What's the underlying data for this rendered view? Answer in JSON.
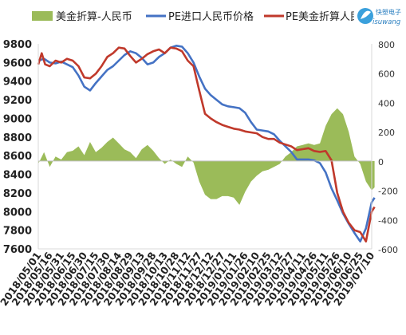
{
  "chart_data": {
    "type": "line",
    "legend": {
      "placement": "top",
      "entries": [
        "美金折算-人民币",
        "PE进口人民币价格",
        "PE美金折算人民币"
      ]
    },
    "colors": {
      "area": "#9bbb59",
      "blue": "#4472c4",
      "red": "#c0392b",
      "axis": "#999999"
    },
    "logo": {
      "text_cn": "快塑电子",
      "text_en": "isuwang"
    },
    "left_axis": {
      "min": 7600,
      "max": 9800,
      "ticks": [
        "9800",
        "9600",
        "9400",
        "9200",
        "9000",
        "8800",
        "8600",
        "8400",
        "8200",
        "8000",
        "7800",
        "7600"
      ]
    },
    "right_axis": {
      "min": -600,
      "max": 800,
      "ticks": [
        "800",
        "600",
        "400",
        "200",
        "0",
        "-200",
        "-400",
        "-600"
      ]
    },
    "x_ticks": [
      "2018/05/01",
      "2018/05/16",
      "2018/05/31",
      "2018/06/15",
      "2018/06/30",
      "2018/07/15",
      "2018/07/30",
      "2018/08/14",
      "2018/08/29",
      "2018/09/13",
      "2018/09/28",
      "2018/10/13",
      "2018/10/28",
      "2018/11/12",
      "2018/11/27",
      "2018/12/12",
      "2018/12/27",
      "2019/01/11",
      "2019/01/26",
      "2019/02/10",
      "2019/02/25",
      "2019/03/12",
      "2019/03/27",
      "2019/04/11",
      "2019/04/26",
      "2019/05/11",
      "2019/05/26",
      "2019/06/10",
      "2019/06/25",
      "2019/07/10"
    ],
    "series": [
      {
        "name": "PE进口人民币价格",
        "axis": "left",
        "points": [
          [
            0,
            9620
          ],
          [
            0.5,
            9640
          ],
          [
            1,
            9600
          ],
          [
            1.5,
            9590
          ],
          [
            2,
            9610
          ],
          [
            2.5,
            9580
          ],
          [
            3,
            9550
          ],
          [
            3.5,
            9460
          ],
          [
            4,
            9340
          ],
          [
            4.5,
            9300
          ],
          [
            5,
            9380
          ],
          [
            5.5,
            9450
          ],
          [
            6,
            9520
          ],
          [
            6.5,
            9560
          ],
          [
            7,
            9620
          ],
          [
            7.5,
            9680
          ],
          [
            8,
            9720
          ],
          [
            8.5,
            9700
          ],
          [
            9,
            9650
          ],
          [
            9.5,
            9580
          ],
          [
            10,
            9600
          ],
          [
            10.5,
            9660
          ],
          [
            11,
            9700
          ],
          [
            11.5,
            9760
          ],
          [
            12,
            9780
          ],
          [
            12.5,
            9770
          ],
          [
            13,
            9700
          ],
          [
            13.5,
            9600
          ],
          [
            14,
            9450
          ],
          [
            14.5,
            9320
          ],
          [
            15,
            9250
          ],
          [
            15.5,
            9200
          ],
          [
            16,
            9150
          ],
          [
            16.5,
            9130
          ],
          [
            17,
            9120
          ],
          [
            17.5,
            9110
          ],
          [
            18,
            9060
          ],
          [
            18.5,
            8960
          ],
          [
            19,
            8880
          ],
          [
            19.5,
            8870
          ],
          [
            20,
            8860
          ],
          [
            20.5,
            8830
          ],
          [
            21,
            8760
          ],
          [
            21.5,
            8700
          ],
          [
            22,
            8640
          ],
          [
            22.5,
            8560
          ],
          [
            23,
            8560
          ],
          [
            23.5,
            8560
          ],
          [
            24,
            8550
          ],
          [
            24.5,
            8520
          ],
          [
            25,
            8420
          ],
          [
            25.5,
            8250
          ],
          [
            26,
            8120
          ],
          [
            26.5,
            7980
          ],
          [
            27,
            7870
          ],
          [
            27.5,
            7770
          ],
          [
            28,
            7680
          ],
          [
            28.5,
            7820
          ],
          [
            29,
            8100
          ],
          [
            29.25,
            8150
          ]
        ]
      },
      {
        "name": "PE美金折算人民币",
        "axis": "left",
        "points": [
          [
            0,
            9580
          ],
          [
            0.3,
            9700
          ],
          [
            0.6,
            9580
          ],
          [
            1,
            9560
          ],
          [
            1.5,
            9620
          ],
          [
            2,
            9600
          ],
          [
            2.5,
            9640
          ],
          [
            3,
            9620
          ],
          [
            3.5,
            9560
          ],
          [
            4,
            9440
          ],
          [
            4.5,
            9430
          ],
          [
            5,
            9480
          ],
          [
            5.5,
            9560
          ],
          [
            6,
            9660
          ],
          [
            6.5,
            9700
          ],
          [
            7,
            9760
          ],
          [
            7.5,
            9750
          ],
          [
            8,
            9670
          ],
          [
            8.5,
            9600
          ],
          [
            9,
            9640
          ],
          [
            9.5,
            9690
          ],
          [
            10,
            9720
          ],
          [
            10.5,
            9740
          ],
          [
            11,
            9700
          ],
          [
            11.5,
            9760
          ],
          [
            12,
            9750
          ],
          [
            12.5,
            9720
          ],
          [
            13,
            9620
          ],
          [
            13.5,
            9560
          ],
          [
            14,
            9300
          ],
          [
            14.5,
            9050
          ],
          [
            15,
            9000
          ],
          [
            15.5,
            8960
          ],
          [
            16,
            8930
          ],
          [
            16.5,
            8910
          ],
          [
            17,
            8890
          ],
          [
            17.5,
            8880
          ],
          [
            18,
            8860
          ],
          [
            18.5,
            8850
          ],
          [
            19,
            8840
          ],
          [
            19.5,
            8800
          ],
          [
            20,
            8780
          ],
          [
            20.5,
            8780
          ],
          [
            21,
            8740
          ],
          [
            21.5,
            8720
          ],
          [
            22,
            8700
          ],
          [
            22.5,
            8660
          ],
          [
            23,
            8670
          ],
          [
            23.5,
            8680
          ],
          [
            24,
            8650
          ],
          [
            24.5,
            8640
          ],
          [
            25,
            8650
          ],
          [
            25.5,
            8550
          ],
          [
            26,
            8200
          ],
          [
            26.5,
            8000
          ],
          [
            27,
            7880
          ],
          [
            27.5,
            7800
          ],
          [
            28,
            7780
          ],
          [
            28.5,
            7680
          ],
          [
            29,
            8000
          ],
          [
            29.25,
            8050
          ]
        ]
      },
      {
        "name": "美金折算-人民币",
        "axis": "right",
        "type": "area",
        "points": [
          [
            0,
            -20
          ],
          [
            0.5,
            60
          ],
          [
            1,
            -40
          ],
          [
            1.5,
            30
          ],
          [
            2,
            10
          ],
          [
            2.5,
            60
          ],
          [
            3,
            70
          ],
          [
            3.5,
            100
          ],
          [
            4,
            40
          ],
          [
            4.5,
            130
          ],
          [
            5,
            60
          ],
          [
            5.5,
            90
          ],
          [
            6,
            130
          ],
          [
            6.5,
            160
          ],
          [
            7,
            120
          ],
          [
            7.5,
            80
          ],
          [
            8,
            60
          ],
          [
            8.5,
            20
          ],
          [
            9,
            80
          ],
          [
            9.5,
            110
          ],
          [
            10,
            70
          ],
          [
            10.5,
            20
          ],
          [
            11,
            -20
          ],
          [
            11.5,
            10
          ],
          [
            12,
            -20
          ],
          [
            12.5,
            -40
          ],
          [
            13,
            30
          ],
          [
            13.5,
            -10
          ],
          [
            14,
            -140
          ],
          [
            14.5,
            -230
          ],
          [
            15,
            -260
          ],
          [
            15.5,
            -260
          ],
          [
            16,
            -240
          ],
          [
            16.5,
            -240
          ],
          [
            17,
            -250
          ],
          [
            17.5,
            -300
          ],
          [
            18,
            -210
          ],
          [
            18.5,
            -140
          ],
          [
            19,
            -100
          ],
          [
            19.5,
            -70
          ],
          [
            20,
            -60
          ],
          [
            20.5,
            -40
          ],
          [
            21,
            -20
          ],
          [
            21.5,
            30
          ],
          [
            22,
            60
          ],
          [
            22.5,
            100
          ],
          [
            23,
            110
          ],
          [
            23.5,
            120
          ],
          [
            24,
            110
          ],
          [
            24.5,
            120
          ],
          [
            25,
            240
          ],
          [
            25.5,
            320
          ],
          [
            26,
            360
          ],
          [
            26.5,
            320
          ],
          [
            27,
            200
          ],
          [
            27.5,
            30
          ],
          [
            28,
            -20
          ],
          [
            28.5,
            -140
          ],
          [
            29,
            -200
          ],
          [
            29.25,
            -180
          ]
        ]
      }
    ]
  }
}
